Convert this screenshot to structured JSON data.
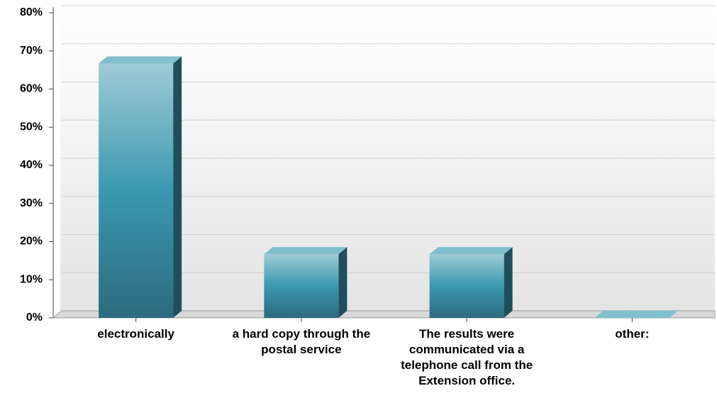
{
  "chart_data": {
    "type": "bar",
    "categories": [
      "electronically",
      "a hard copy through the postal service",
      "The results were communicated via a telephone call from the Extension office.",
      "other:"
    ],
    "values": [
      66.7,
      16.7,
      16.7,
      0
    ],
    "color": "#3a98b0",
    "ylim": [
      0,
      80
    ],
    "yticks": [
      {
        "value": 0,
        "label": "0%"
      },
      {
        "value": 10,
        "label": "10%"
      },
      {
        "value": 20,
        "label": "20%"
      },
      {
        "value": 30,
        "label": "30%"
      },
      {
        "value": 40,
        "label": "40%"
      },
      {
        "value": 50,
        "label": "50%"
      },
      {
        "value": 60,
        "label": "60%"
      },
      {
        "value": 70,
        "label": "70%"
      },
      {
        "value": 80,
        "label": "80%"
      }
    ],
    "grid": true
  }
}
